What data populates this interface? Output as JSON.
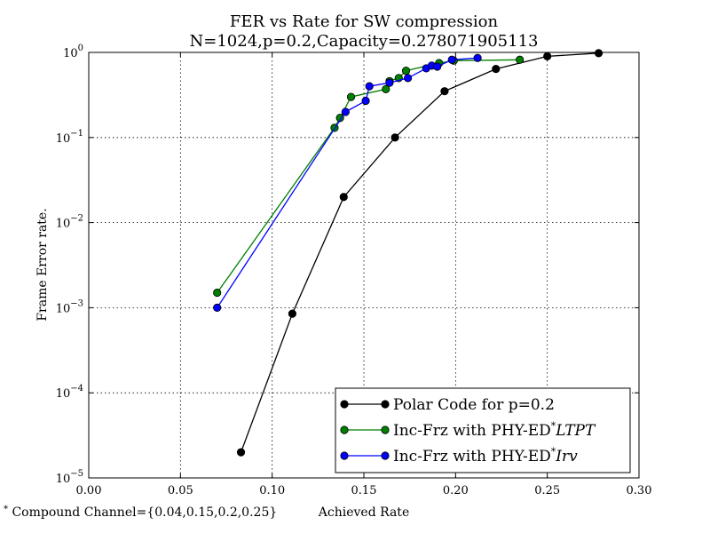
{
  "chart_data": {
    "type": "line",
    "title": "FER vs Rate for SW compression",
    "subtitle": "N=1024,p=0.2,Capacity=0.278071905113",
    "xlabel": "Achieved Rate",
    "ylabel": "Frame Error rate.",
    "xlim": [
      0.0,
      0.3
    ],
    "ylim": [
      1e-05,
      1
    ],
    "yscale": "log",
    "grid": true,
    "legend_position": "bottom-right",
    "x_ticks": [
      "0.00",
      "0.05",
      "0.10",
      "0.15",
      "0.20",
      "0.25",
      "0.30"
    ],
    "y_ticks": [
      {
        "base": "10",
        "exp": "0"
      },
      {
        "base": "10",
        "exp": "−1"
      },
      {
        "base": "10",
        "exp": "−2"
      },
      {
        "base": "10",
        "exp": "−3"
      },
      {
        "base": "10",
        "exp": "−4"
      },
      {
        "base": "10",
        "exp": "−5"
      }
    ],
    "series": [
      {
        "name": "Polar Code for p=0.2",
        "color": "#000000",
        "x": [
          0.083,
          0.111,
          0.139,
          0.167,
          0.194,
          0.222,
          0.25,
          0.278
        ],
        "y": [
          2e-05,
          0.00085,
          0.02,
          0.1,
          0.35,
          0.64,
          0.9,
          0.98
        ]
      },
      {
        "name": "Inc-Frz with PHY-ED*LTPT",
        "color": "#007f00",
        "x": [
          0.07,
          0.134,
          0.137,
          0.143,
          0.162,
          0.164,
          0.169,
          0.173,
          0.191,
          0.199,
          0.235
        ],
        "y": [
          0.0015,
          0.13,
          0.17,
          0.3,
          0.37,
          0.46,
          0.5,
          0.61,
          0.75,
          0.8,
          0.82
        ]
      },
      {
        "name": "Inc-Frz with PHY-ED*Irv",
        "color": "#0000ff",
        "x": [
          0.07,
          0.14,
          0.151,
          0.153,
          0.164,
          0.174,
          0.184,
          0.187,
          0.19,
          0.198,
          0.212
        ],
        "y": [
          0.001,
          0.2,
          0.27,
          0.4,
          0.44,
          0.5,
          0.65,
          0.7,
          0.68,
          0.82,
          0.86
        ]
      }
    ],
    "legend": [
      {
        "main": "Polar Code for p=0.2",
        "sup": "",
        "italic": ""
      },
      {
        "main": "Inc-Frz with PHY-ED",
        "sup": "*",
        "italic": "LTPT"
      },
      {
        "main": "Inc-Frz with PHY-ED",
        "sup": "*",
        "italic": "Irv"
      }
    ],
    "footnote": {
      "sup": "*",
      "text": "Compound Channel={0.04,0.15,0.2,0.25}"
    }
  }
}
